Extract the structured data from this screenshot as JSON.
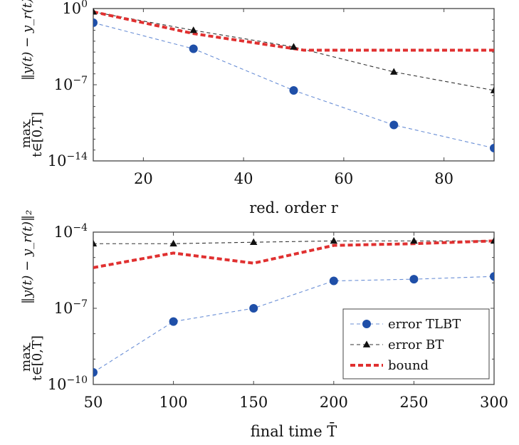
{
  "chart_data": [
    {
      "type": "line",
      "xlabel": "red. order r",
      "ylabel_main": "max",
      "ylabel_sub": "t∈[0,T̄]",
      "ylabel_expr": "‖y(t) − y_r(t)‖₂",
      "xlim": [
        10,
        90
      ],
      "x_ticks": [
        20,
        40,
        60,
        80
      ],
      "x_tick_labels": [
        "20",
        "40",
        "60",
        "80"
      ],
      "yscale": "log",
      "ylim": [
        1e-14,
        1
      ],
      "y_ticks": [
        1,
        1e-07,
        1e-14
      ],
      "y_tick_labels": [
        "10^0",
        "10^-7",
        "10^-14"
      ],
      "series": [
        {
          "name": "error TLBT",
          "color": "#1f4fa8",
          "line_color": "#6a8fd6",
          "marker": "circle",
          "x": [
            10,
            30,
            50,
            70,
            90
          ],
          "y": [
            0.05,
            0.0002,
            3e-08,
            2e-11,
            1.5e-13
          ]
        },
        {
          "name": "error BT",
          "color": "#111111",
          "line_color": "#333333",
          "marker": "triangle",
          "x": [
            10,
            30,
            50,
            70,
            90
          ],
          "y": [
            0.5,
            0.01,
            0.0003,
            1.5e-06,
            3e-08
          ]
        },
        {
          "name": "bound",
          "color": "#e03030",
          "line_color": "#e03030",
          "marker": "none",
          "x": [
            10,
            30,
            52,
            90
          ],
          "y": [
            0.5,
            0.005,
            0.00015,
            0.00015
          ]
        }
      ]
    },
    {
      "type": "line",
      "xlabel": "final time T̄",
      "ylabel_main": "max",
      "ylabel_sub": "t∈[0,T̄]",
      "ylabel_expr": "‖y(t) − y_r(t)‖₂",
      "xlim": [
        50,
        300
      ],
      "x_ticks": [
        50,
        100,
        150,
        200,
        250,
        300
      ],
      "x_tick_labels": [
        "50",
        "100",
        "150",
        "200",
        "250",
        "300"
      ],
      "yscale": "log",
      "ylim": [
        1e-10,
        0.0001
      ],
      "y_ticks": [
        0.0001,
        1e-07,
        1e-10
      ],
      "y_tick_labels": [
        "10^-4",
        "10^-7",
        "10^-10"
      ],
      "legend": {
        "position": "bottom-right",
        "entries": [
          "error TLBT",
          "error BT",
          "bound"
        ]
      },
      "series": [
        {
          "name": "error TLBT",
          "color": "#1f4fa8",
          "line_color": "#6a8fd6",
          "marker": "circle",
          "x": [
            50,
            100,
            150,
            200,
            250,
            300
          ],
          "y": [
            3e-10,
            3e-08,
            1e-07,
            1.2e-06,
            1.4e-06,
            1.8e-06
          ]
        },
        {
          "name": "error BT",
          "color": "#111111",
          "line_color": "#333333",
          "marker": "triangle",
          "x": [
            50,
            100,
            150,
            200,
            250,
            300
          ],
          "y": [
            3.5e-05,
            3.5e-05,
            4e-05,
            4.5e-05,
            4.5e-05,
            4.5e-05
          ]
        },
        {
          "name": "bound",
          "color": "#e03030",
          "line_color": "#e03030",
          "marker": "none",
          "x": [
            50,
            100,
            150,
            200,
            250,
            300
          ],
          "y": [
            4e-06,
            1.5e-05,
            6e-06,
            3e-05,
            3.5e-05,
            4.5e-05
          ]
        }
      ]
    }
  ]
}
